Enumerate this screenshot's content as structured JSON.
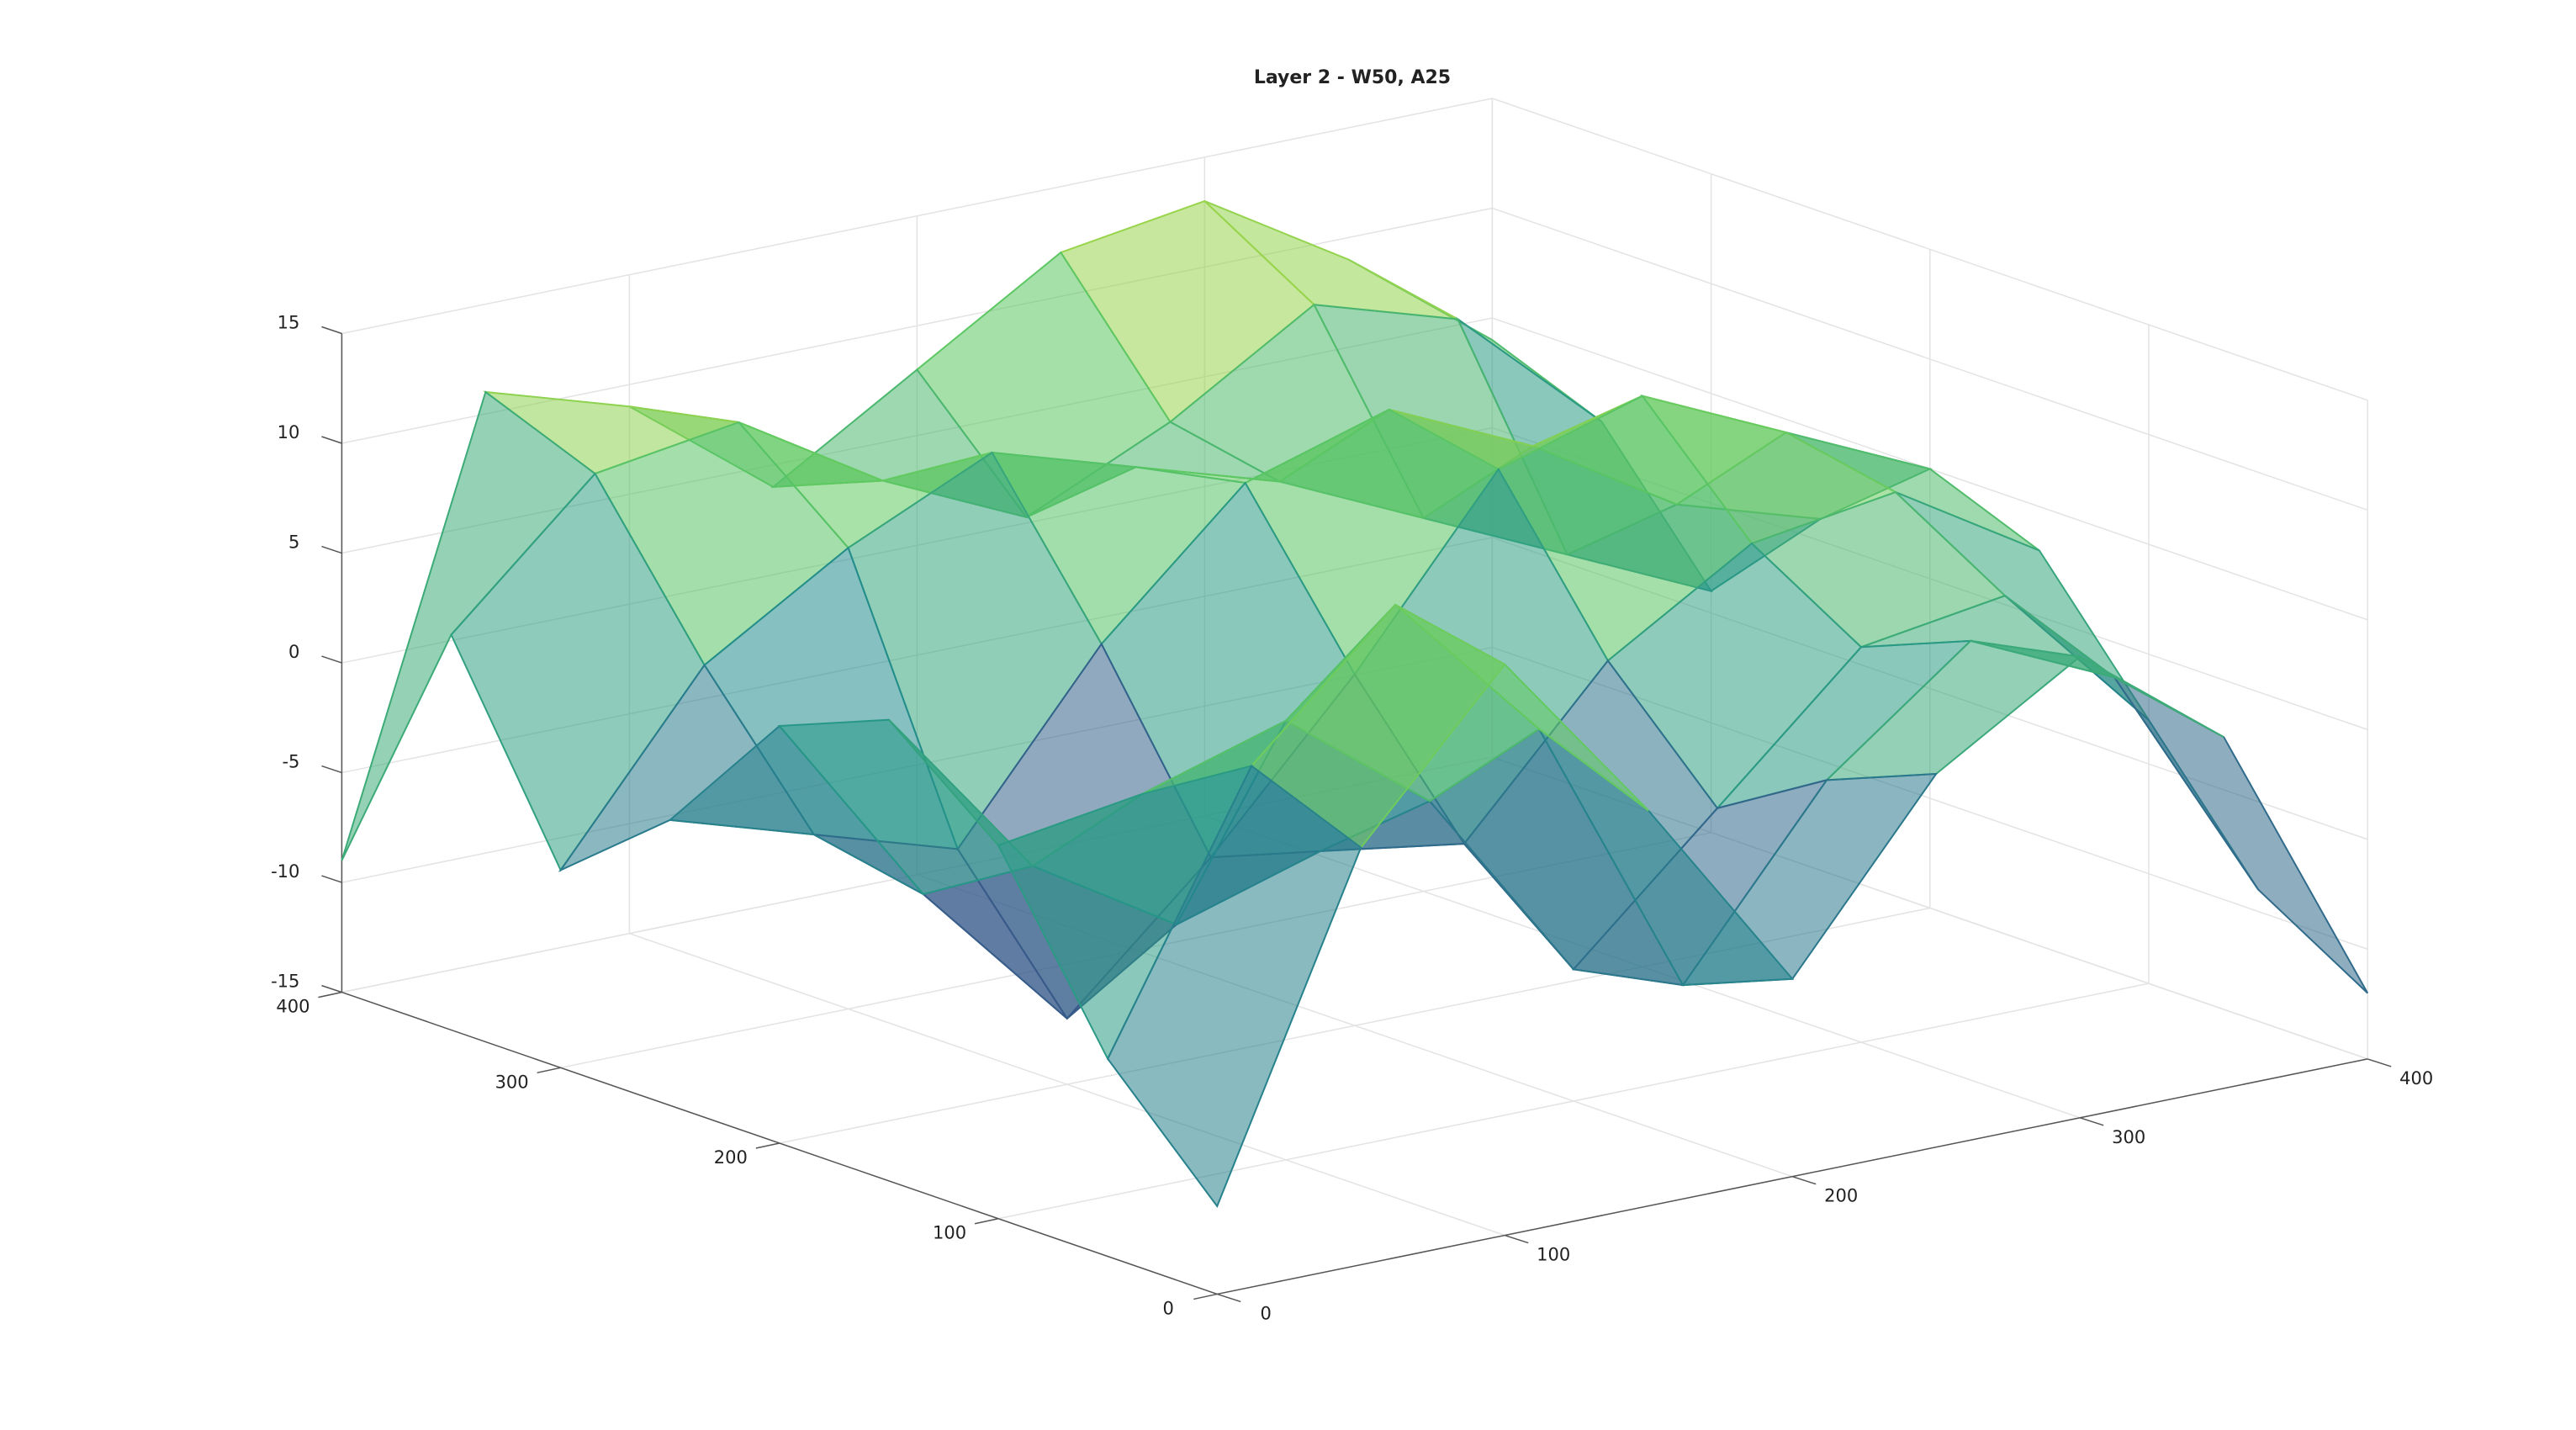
{
  "chart_data": {
    "type": "surface",
    "title": "Layer 2 - W50, A25",
    "x": [
      0,
      50,
      100,
      150,
      200,
      250,
      300,
      350,
      400
    ],
    "y": [
      0,
      50,
      100,
      150,
      200,
      250,
      300,
      350,
      400
    ],
    "z": [
      [
        -11,
        4,
        11,
        3,
        -6,
        2,
        6,
        1,
        -12
      ],
      [
        -6,
        6,
        12,
        5,
        -8,
        0,
        5,
        2,
        -9
      ],
      [
        2,
        3,
        5,
        0,
        -9,
        -3,
        3,
        4,
        -3
      ],
      [
        6,
        -2,
        -6,
        -4,
        -5,
        2,
        6,
        7,
        3
      ],
      [
        4,
        -5,
        -12,
        -6,
        1,
        9,
        11,
        8,
        5
      ],
      [
        -2,
        -4,
        -6,
        2,
        8,
        10,
        7,
        3,
        1
      ],
      [
        -6,
        2,
        6,
        9,
        7,
        5,
        2,
        -1,
        -4
      ],
      [
        3,
        9,
        10,
        6,
        3,
        6,
        10,
        8,
        2
      ],
      [
        -9,
        11,
        9,
        4,
        8,
        12,
        13,
        9,
        4
      ]
    ],
    "xlim": [
      0,
      400
    ],
    "ylim": [
      0,
      400
    ],
    "zlim": [
      -15,
      15
    ],
    "xticks": [
      0,
      100,
      200,
      300,
      400
    ],
    "yticks": [
      0,
      100,
      200,
      300,
      400
    ],
    "zticks": [
      -15,
      -10,
      -5,
      0,
      5,
      10,
      15
    ],
    "grid": true,
    "colormap": "viridis"
  }
}
